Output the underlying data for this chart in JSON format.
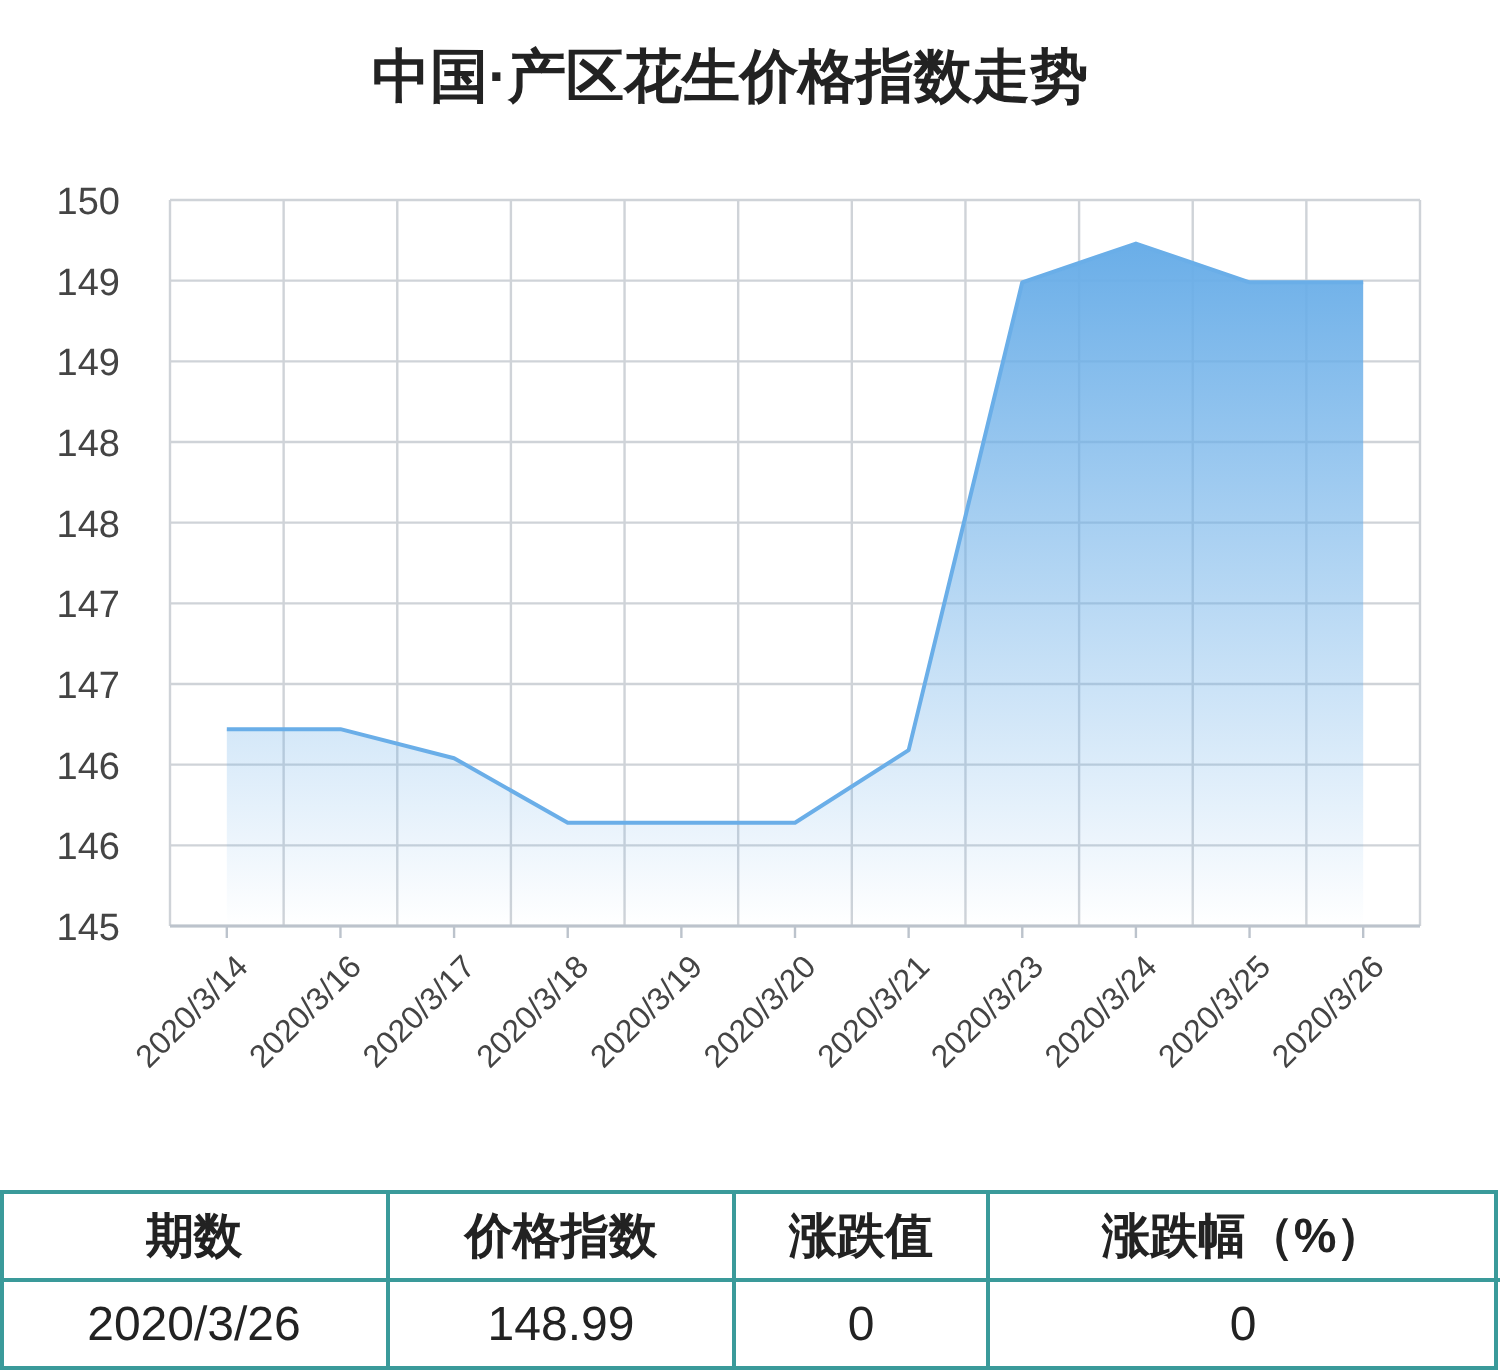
{
  "chart_data": [
    {
      "type": "line",
      "title": "中国·产区花生价格指数走势",
      "categories": [
        "2020/3/14",
        "2020/3/16",
        "2020/3/17",
        "2020/3/18",
        "2020/3/19",
        "2020/3/20",
        "2020/3/21",
        "2020/3/23",
        "2020/3/24",
        "2020/3/25",
        "2020/3/26"
      ],
      "series": [
        {
          "type": "area",
          "color": "#6aaee8",
          "values": [
            146.22,
            146.22,
            146.04,
            145.64,
            145.64,
            145.64,
            146.09,
            148.99,
            149.23,
            148.99,
            148.99
          ]
        }
      ],
      "ylim": [
        145,
        149.5
      ],
      "yticks": [
        145,
        {
          "value": 145.5,
          "label": "146"
        },
        146,
        {
          "value": 146.5,
          "label": "147"
        },
        147,
        {
          "value": 147.5,
          "label": "148"
        },
        148,
        {
          "value": 148.5,
          "label": "149"
        },
        149,
        {
          "value": 149.5,
          "label": "150"
        }
      ],
      "grid": true,
      "marker": "none"
    },
    {
      "type": "other",
      "annotations": [
        "期数",
        "价格指数",
        "涨跌值",
        "涨跌幅（%）",
        "2020/3/26",
        "148.99",
        "0",
        "0"
      ]
    }
  ]
}
